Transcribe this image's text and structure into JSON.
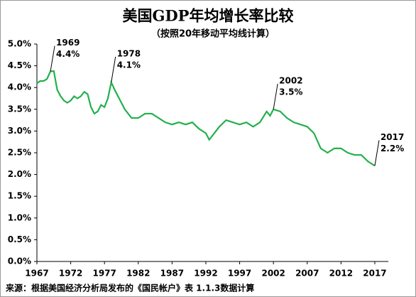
{
  "chart_data": {
    "type": "line",
    "title": "美国GDP年均增长率比较",
    "subtitle": "（按照20年移动平均线计算）",
    "source": "来源：根据美国经济分析局发布的《国民帐户》表 1.1.3数据计算",
    "x": [
      1967,
      1967.5,
      1968,
      1968.5,
      1969,
      1969.5,
      1970,
      1970.5,
      1971,
      1971.5,
      1972,
      1972.5,
      1973,
      1973.5,
      1974,
      1974.5,
      1975,
      1975.5,
      1976,
      1976.5,
      1977,
      1977.5,
      1978,
      1978.5,
      1979,
      1979.5,
      1980,
      1981,
      1982,
      1983,
      1984,
      1985,
      1986,
      1987,
      1988,
      1989,
      1990,
      1991,
      1992,
      1992.5,
      1993,
      1994,
      1995,
      1996,
      1997,
      1998,
      1999,
      2000,
      2001,
      2001.5,
      2002,
      2003,
      2004,
      2005,
      2006,
      2007,
      2008,
      2009,
      2010,
      2011,
      2012,
      2013,
      2014,
      2015,
      2016,
      2017
    ],
    "series": [
      {
        "name": "GDP",
        "color": "#22b14c",
        "values": [
          4.1,
          4.15,
          4.15,
          4.2,
          4.37,
          4.38,
          3.95,
          3.8,
          3.7,
          3.65,
          3.7,
          3.8,
          3.75,
          3.8,
          3.9,
          3.85,
          3.55,
          3.4,
          3.45,
          3.6,
          3.55,
          3.75,
          4.12,
          3.95,
          3.8,
          3.65,
          3.5,
          3.3,
          3.3,
          3.4,
          3.4,
          3.3,
          3.2,
          3.15,
          3.2,
          3.15,
          3.2,
          3.05,
          2.95,
          2.8,
          2.9,
          3.1,
          3.25,
          3.2,
          3.15,
          3.2,
          3.1,
          3.2,
          3.45,
          3.35,
          3.5,
          3.45,
          3.3,
          3.2,
          3.15,
          3.1,
          2.95,
          2.6,
          2.5,
          2.6,
          2.6,
          2.5,
          2.45,
          2.45,
          2.3,
          2.2
        ]
      }
    ],
    "xlim": [
      1967,
      2019
    ],
    "xticks": [
      1967,
      1972,
      1977,
      1982,
      1987,
      1992,
      1997,
      2002,
      2007,
      2012,
      2017
    ],
    "ylim": [
      0,
      5
    ],
    "yticks": [
      {
        "value": 0,
        "label": "0.0%"
      },
      {
        "value": 0.5,
        "label": "0.5%"
      },
      {
        "value": 1,
        "label": "1.0%"
      },
      {
        "value": 1.5,
        "label": "1.5%"
      },
      {
        "value": 2,
        "label": "2.0%"
      },
      {
        "value": 2.5,
        "label": "2.5%"
      },
      {
        "value": 3,
        "label": "3.0%"
      },
      {
        "value": 3.5,
        "label": "3.5%"
      },
      {
        "value": 4,
        "label": "4.0%"
      },
      {
        "value": 4.5,
        "label": "4.5%"
      },
      {
        "value": 5,
        "label": "5.0%"
      }
    ],
    "annotations": [
      {
        "x": 1969,
        "y": 4.37,
        "label": "1969",
        "value_label": "4.4%"
      },
      {
        "x": 1978,
        "y": 4.12,
        "label": "1978",
        "value_label": "4.1%"
      },
      {
        "x": 2002,
        "y": 3.5,
        "label": "2002",
        "value_label": "3.5%"
      },
      {
        "x": 2017,
        "y": 2.2,
        "label": "2017",
        "value_label": "2.2%"
      }
    ]
  }
}
